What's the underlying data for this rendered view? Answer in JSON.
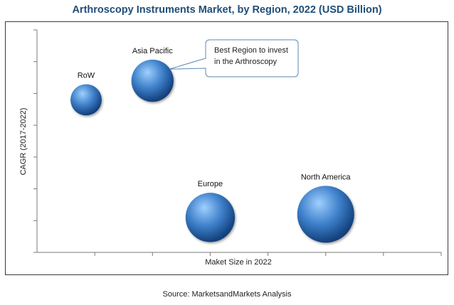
{
  "chart_data": {
    "type": "bubble",
    "title": "Arthroscopy Instruments Market, by Region, 2022 (USD Billion)",
    "xlabel": "Maket Size in 2022",
    "ylabel": "CAGR (2017-2022)",
    "x_ticks_labeled": false,
    "y_ticks_labeled": false,
    "grid": false,
    "xlim": [
      0,
      7
    ],
    "ylim": [
      0,
      7
    ],
    "series": [
      {
        "label": "RoW",
        "x": 0.85,
        "y": 4.8,
        "size": 0.3
      },
      {
        "label": "Asia Pacific",
        "x": 2.0,
        "y": 5.4,
        "size": 0.55
      },
      {
        "label": "Europe",
        "x": 3.0,
        "y": 1.1,
        "size": 0.75
      },
      {
        "label": "North America",
        "x": 5.0,
        "y": 1.2,
        "size": 1.0
      }
    ],
    "annotation": {
      "text_line1": "Best Region to invest",
      "text_line2": "in the Arthroscopy",
      "target": "Asia Pacific"
    },
    "colors": {
      "bubble_highlight": "#9fd0ff",
      "bubble_mid": "#3d7fc9",
      "bubble_dark": "#123f7a",
      "title": "#1f4e79",
      "axis": "#7a7a7a"
    }
  },
  "footer": {
    "source": "Source: MarketsandMarkets Analysis"
  }
}
